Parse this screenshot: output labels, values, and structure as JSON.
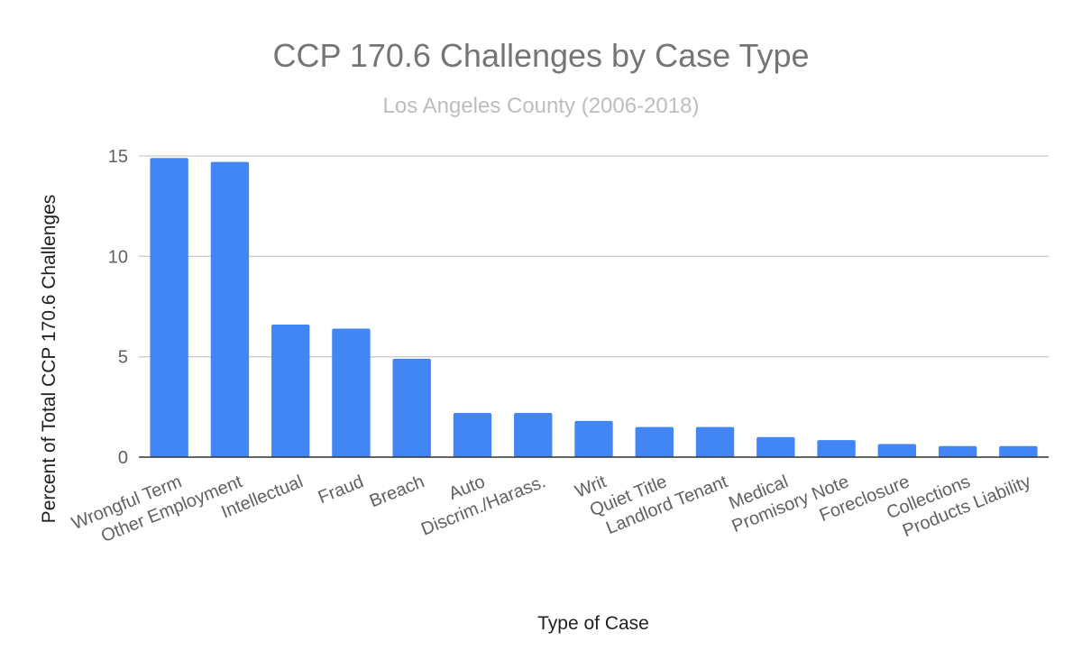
{
  "chart_data": {
    "type": "bar",
    "title": "CCP 170.6 Challenges by Case Type",
    "subtitle": "Los Angeles County (2006-2018)",
    "xlabel": "Type of Case",
    "ylabel": "Percent of Total CCP 170.6 Challenges",
    "ylim": [
      0,
      15
    ],
    "yticks": [
      0,
      5,
      10,
      15
    ],
    "grid": true,
    "bar_color": "#4285f4",
    "categories": [
      "Wrongful Term",
      "Other Employment",
      "Intellectual",
      "Fraud",
      "Breach",
      "Auto",
      "Discrim./Harass.",
      "Writ",
      "Quiet Title",
      "Landlord Tenant",
      "Medical",
      "Promisory Note",
      "Foreclosure",
      "Collections",
      "Products Liability"
    ],
    "values": [
      14.9,
      14.7,
      6.6,
      6.4,
      4.9,
      2.2,
      2.2,
      1.8,
      1.5,
      1.5,
      1.0,
      0.85,
      0.65,
      0.55,
      0.55
    ]
  }
}
